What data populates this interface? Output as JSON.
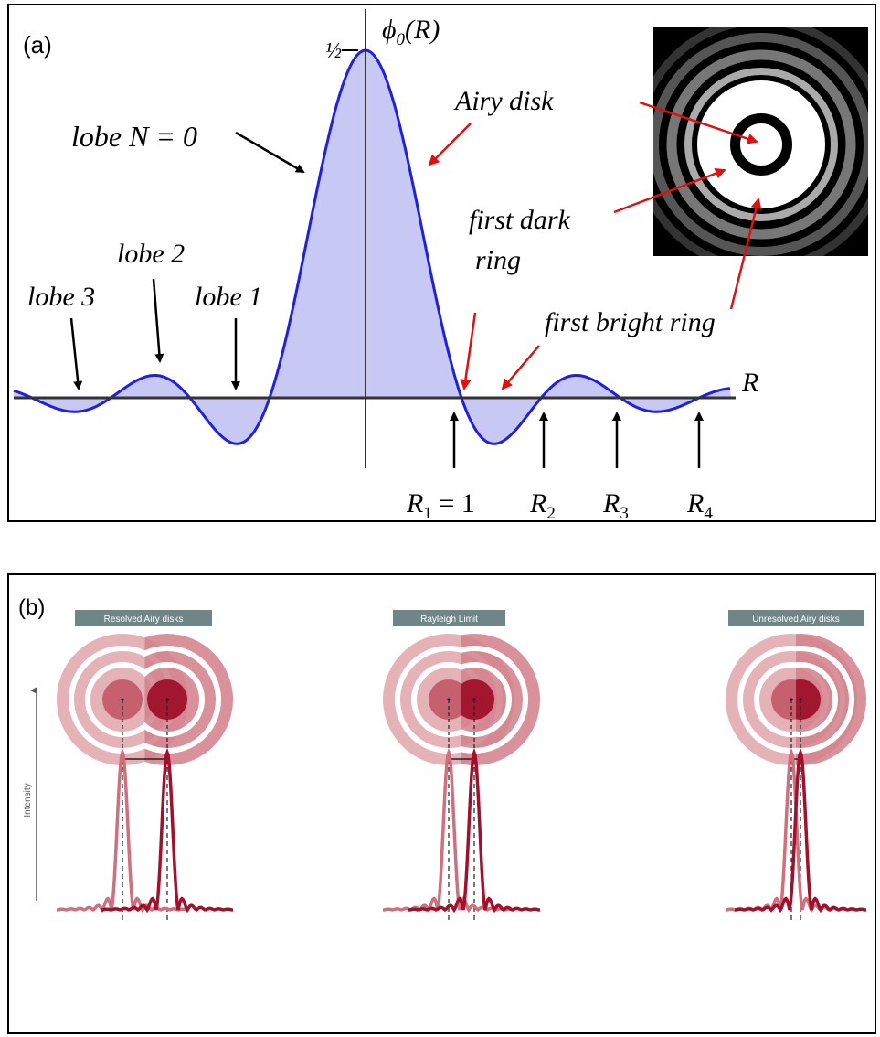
{
  "panel_a": {
    "label": "(a)",
    "y_axis": {
      "symbol": "ϕ",
      "sub": "0",
      "arg": "(R)"
    },
    "half": "½",
    "x_axis": "R",
    "lobe0": "lobe N = 0",
    "lobe1": "lobe 1",
    "lobe2": "lobe 2",
    "lobe3": "lobe 3",
    "airy_disk": "Airy disk",
    "first_dark_ring": [
      "first dark",
      "ring"
    ],
    "first_bright_ring": "first bright ring",
    "radii": [
      {
        "name": "R",
        "sub": "1",
        "suffix": " = 1"
      },
      {
        "name": "R",
        "sub": "2"
      },
      {
        "name": "R",
        "sub": "3"
      },
      {
        "name": "R",
        "sub": "4"
      }
    ]
  },
  "panel_b": {
    "label": "(b)",
    "cases": [
      "Resolved Airy disks",
      "Rayleigh Limit",
      "Unresolved Airy disks"
    ],
    "y_axis": "Intensity"
  }
}
